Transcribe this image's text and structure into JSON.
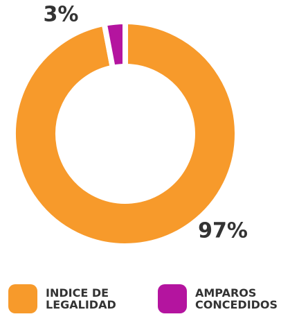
{
  "chart_data": {
    "type": "pie",
    "donut": true,
    "categories": [
      "INDICE DE LEGALIDAD",
      "AMPAROS CONCEDIDOS"
    ],
    "values": [
      97,
      3
    ],
    "value_labels": [
      "97%",
      "3%"
    ],
    "colors": [
      "#f79a2b",
      "#b4149f"
    ]
  }
}
